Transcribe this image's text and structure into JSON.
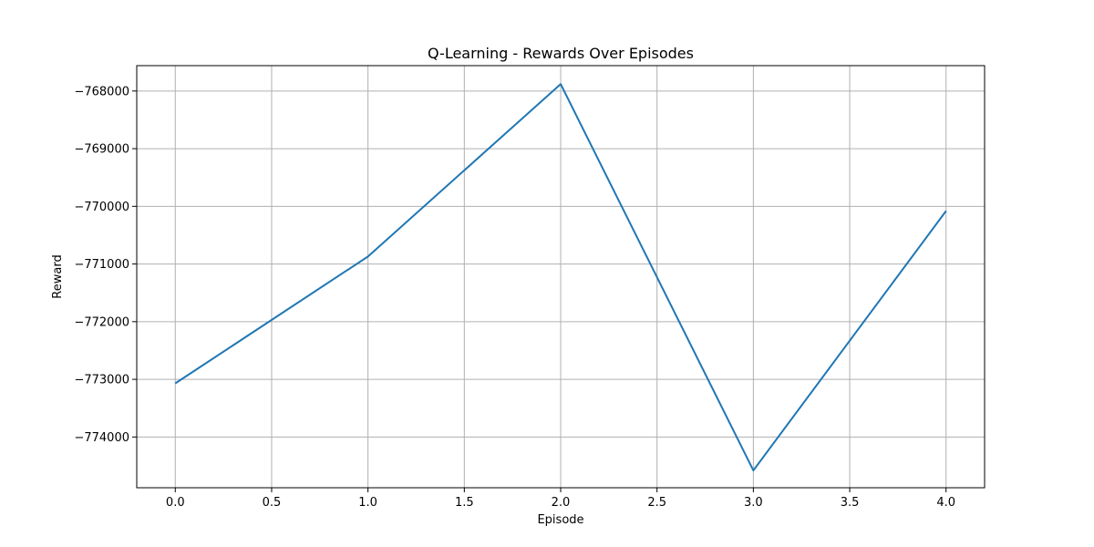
{
  "chart_data": {
    "type": "line",
    "title": "Q-Learning - Rewards Over Episodes",
    "xlabel": "Episode",
    "ylabel": "Reward",
    "x": [
      0,
      1,
      2,
      3,
      4
    ],
    "series": [
      {
        "values": [
          -773070,
          -770870,
          -767880,
          -774580,
          -770080
        ],
        "color": "#1f77b4"
      }
    ],
    "xlim": [
      -0.2,
      4.2
    ],
    "ylim": [
      -774880,
      -767560
    ],
    "xticks": [
      0.0,
      0.5,
      1.0,
      1.5,
      2.0,
      2.5,
      3.0,
      3.5,
      4.0
    ],
    "xtick_labels": [
      "0.0",
      "0.5",
      "1.0",
      "1.5",
      "2.0",
      "2.5",
      "3.0",
      "3.5",
      "4.0"
    ],
    "yticks": [
      -774000,
      -773000,
      -772000,
      -771000,
      -770000,
      -769000,
      -768000
    ],
    "ytick_labels": [
      "−774000",
      "−773000",
      "−772000",
      "−771000",
      "−770000",
      "−769000",
      "−768000"
    ],
    "grid": true,
    "grid_color": "#b0b0b0"
  }
}
